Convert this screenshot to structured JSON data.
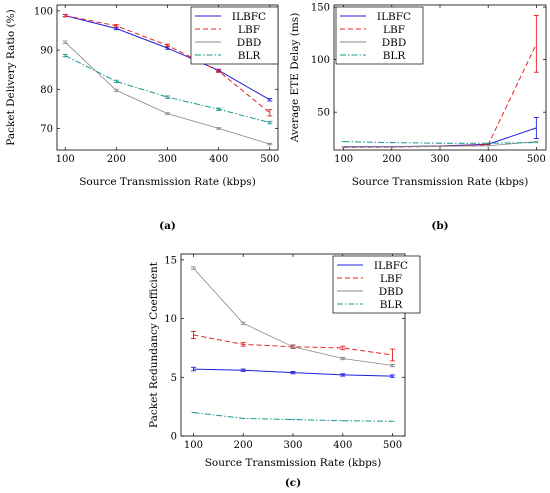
{
  "chart_data": [
    {
      "type": "line",
      "sublabel": "(a)",
      "xlabel": "Source Transmission Rate (kbps)",
      "ylabel": "Packet Delivery Ratio (%)",
      "xlim": [
        84,
        516
      ],
      "ylim": [
        64.5,
        101.5
      ],
      "xticks": [
        100,
        200,
        300,
        400,
        500
      ],
      "yticks": [
        70,
        80,
        90,
        100
      ],
      "legend_position": "top-right",
      "x": [
        100,
        200,
        300,
        400,
        500
      ],
      "series": [
        {
          "name": "ILBFC",
          "color": "#1f1fdd",
          "dash": "solid",
          "values": [
            98.8,
            95.5,
            90.5,
            84.8,
            77.3
          ],
          "err": [
            0.3,
            0.3,
            0.3,
            0.3,
            0.3
          ]
        },
        {
          "name": "LBF",
          "color": "#e82020",
          "dash": "dashed",
          "values": [
            98.8,
            96.2,
            91.2,
            84.6,
            74.0
          ],
          "err": [
            0.3,
            0.3,
            0.3,
            0.3,
            0.8
          ]
        },
        {
          "name": "DBD",
          "color": "#888888",
          "dash": "solid",
          "values": [
            92.0,
            79.7,
            73.8,
            70.0,
            66.0
          ],
          "err": [
            0.3,
            0.3,
            0.2,
            0.2,
            0.2
          ]
        },
        {
          "name": "BLR",
          "color": "#169a8e",
          "dash": "dashdot",
          "values": [
            88.6,
            82.0,
            78.0,
            74.9,
            71.5
          ],
          "err": [
            0.3,
            0.3,
            0.3,
            0.3,
            0.3
          ]
        }
      ]
    },
    {
      "type": "line",
      "sublabel": "(b)",
      "xlabel": "Source Transmission Rate (kbps)",
      "ylabel": "Average ETE Delay (ms)",
      "xlim": [
        80,
        520
      ],
      "ylim": [
        14,
        152
      ],
      "xticks": [
        100,
        200,
        300,
        400,
        500
      ],
      "yticks": [
        50,
        100,
        150
      ],
      "legend_position": "top-left",
      "x": [
        100,
        200,
        300,
        400,
        500
      ],
      "series": [
        {
          "name": "ILBFC",
          "color": "#1f1fdd",
          "dash": "solid",
          "values": [
            17.0,
            17.2,
            17.8,
            19.5,
            35.0
          ],
          "err": [
            0,
            0,
            0,
            0,
            10
          ]
        },
        {
          "name": "LBF",
          "color": "#e82020",
          "dash": "dashed",
          "values": [
            16.5,
            16.8,
            17.5,
            19.0,
            115.0
          ],
          "err": [
            0,
            0,
            0,
            0,
            27
          ]
        },
        {
          "name": "DBD",
          "color": "#888888",
          "dash": "solid",
          "values": [
            16.8,
            17.0,
            17.5,
            18.0,
            22.0
          ],
          "err": [
            0,
            0,
            0,
            0,
            0
          ]
        },
        {
          "name": "BLR",
          "color": "#169a8e",
          "dash": "dashdot",
          "values": [
            22.0,
            21.0,
            20.5,
            20.5,
            21.0
          ],
          "err": [
            0,
            0,
            0,
            0,
            0
          ]
        }
      ]
    },
    {
      "type": "line",
      "sublabel": "(c)",
      "xlabel": "Source Transmission Rate (kbps)",
      "ylabel": "Packet Redundancy Coefficient",
      "xlim": [
        75,
        525
      ],
      "ylim": [
        0,
        15.5
      ],
      "xticks": [
        100,
        200,
        300,
        400,
        500
      ],
      "yticks": [
        0,
        5,
        10,
        15
      ],
      "legend_position": "top-right",
      "x": [
        100,
        200,
        300,
        400,
        500
      ],
      "series": [
        {
          "name": "ILBFC",
          "color": "#1f1fdd",
          "dash": "solid",
          "values": [
            5.7,
            5.6,
            5.4,
            5.2,
            5.1
          ],
          "err": [
            0.15,
            0.1,
            0.1,
            0.1,
            0.1
          ]
        },
        {
          "name": "LBF",
          "color": "#e82020",
          "dash": "dashed",
          "values": [
            8.6,
            7.8,
            7.6,
            7.5,
            6.9
          ],
          "err": [
            0.3,
            0.15,
            0.15,
            0.15,
            0.5
          ]
        },
        {
          "name": "DBD",
          "color": "#888888",
          "dash": "solid",
          "values": [
            14.3,
            9.6,
            7.6,
            6.6,
            6.0
          ],
          "err": [
            0.1,
            0.1,
            0.1,
            0.1,
            0.1
          ]
        },
        {
          "name": "BLR",
          "color": "#169a8e",
          "dash": "dashdot",
          "values": [
            2.0,
            1.5,
            1.4,
            1.3,
            1.25
          ],
          "err": [
            0,
            0,
            0,
            0,
            0
          ]
        }
      ]
    }
  ]
}
